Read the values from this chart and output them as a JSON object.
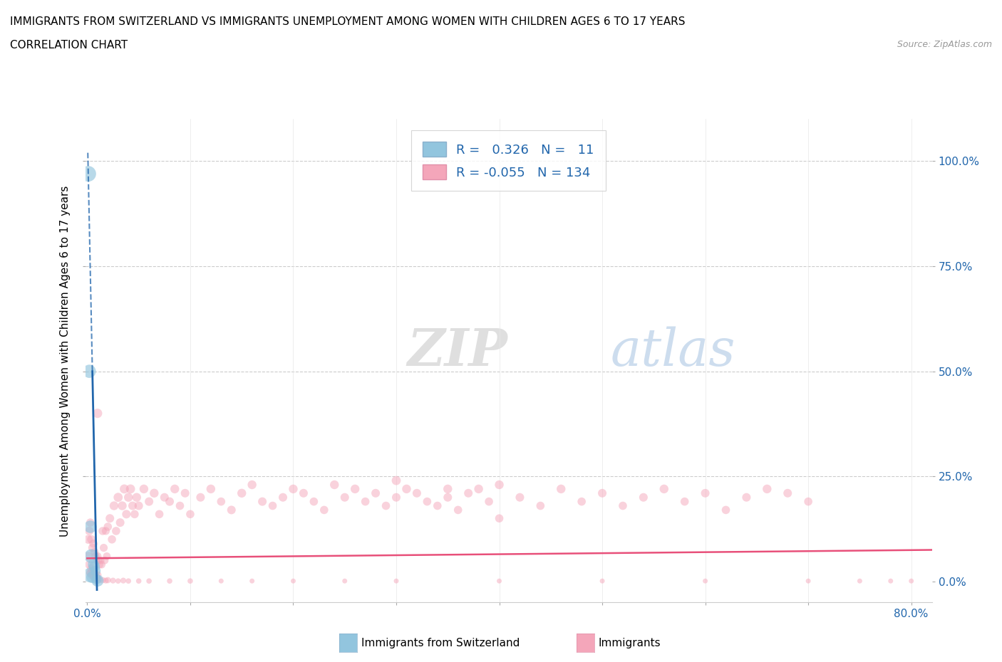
{
  "title_line1": "IMMIGRANTS FROM SWITZERLAND VS IMMIGRANTS UNEMPLOYMENT AMONG WOMEN WITH CHILDREN AGES 6 TO 17 YEARS",
  "title_line2": "CORRELATION CHART",
  "source": "Source: ZipAtlas.com",
  "ylabel": "Unemployment Among Women with Children Ages 6 to 17 years",
  "xlim": [
    -0.002,
    0.82
  ],
  "ylim": [
    -0.05,
    1.1
  ],
  "r_blue": "0.326",
  "n_blue": "11",
  "r_pink": "-0.055",
  "n_pink": "134",
  "blue_color": "#92c5de",
  "pink_color": "#f4a6ba",
  "blue_line_color": "#2166ac",
  "pink_line_color": "#e8507a",
  "legend_label_blue": "Immigrants from Switzerland",
  "legend_label_pink": "Immigrants",
  "blue_scatter_x": [
    0.001,
    0.002,
    0.003,
    0.004,
    0.006,
    0.007,
    0.008,
    0.003,
    0.005,
    0.009,
    0.01
  ],
  "blue_scatter_y": [
    0.97,
    0.5,
    0.13,
    0.06,
    0.04,
    0.035,
    0.025,
    0.015,
    0.01,
    0.005,
    0.002
  ],
  "blue_dot_sizes": [
    250,
    180,
    160,
    200,
    130,
    120,
    110,
    220,
    140,
    100,
    150
  ],
  "pink_scatter_x": [
    0.001,
    0.001,
    0.002,
    0.002,
    0.003,
    0.003,
    0.004,
    0.004,
    0.005,
    0.005,
    0.006,
    0.006,
    0.007,
    0.007,
    0.008,
    0.008,
    0.009,
    0.009,
    0.01,
    0.01,
    0.011,
    0.012,
    0.013,
    0.014,
    0.015,
    0.016,
    0.017,
    0.018,
    0.019,
    0.02,
    0.022,
    0.024,
    0.026,
    0.028,
    0.03,
    0.032,
    0.034,
    0.036,
    0.038,
    0.04,
    0.042,
    0.044,
    0.046,
    0.048,
    0.05,
    0.055,
    0.06,
    0.065,
    0.07,
    0.075,
    0.08,
    0.085,
    0.09,
    0.095,
    0.1,
    0.11,
    0.12,
    0.13,
    0.14,
    0.15,
    0.16,
    0.17,
    0.18,
    0.19,
    0.2,
    0.21,
    0.22,
    0.23,
    0.24,
    0.25,
    0.26,
    0.27,
    0.28,
    0.29,
    0.3,
    0.31,
    0.32,
    0.33,
    0.34,
    0.35,
    0.36,
    0.37,
    0.38,
    0.39,
    0.4,
    0.42,
    0.44,
    0.46,
    0.48,
    0.5,
    0.52,
    0.54,
    0.56,
    0.58,
    0.6,
    0.62,
    0.64,
    0.66,
    0.68,
    0.7,
    0.3,
    0.35,
    0.4,
    0.003,
    0.004,
    0.005,
    0.006,
    0.007,
    0.008,
    0.009,
    0.01,
    0.012,
    0.015,
    0.018,
    0.02,
    0.025,
    0.03,
    0.035,
    0.04,
    0.05,
    0.06,
    0.08,
    0.1,
    0.13,
    0.16,
    0.2,
    0.25,
    0.3,
    0.4,
    0.5,
    0.6,
    0.7,
    0.75,
    0.78,
    0.8,
    0.01
  ],
  "pink_scatter_y": [
    0.1,
    0.06,
    0.12,
    0.04,
    0.14,
    0.02,
    0.1,
    0.03,
    0.08,
    0.025,
    0.09,
    0.015,
    0.07,
    0.02,
    0.06,
    0.015,
    0.05,
    0.01,
    0.06,
    0.015,
    0.05,
    0.04,
    0.05,
    0.04,
    0.12,
    0.08,
    0.05,
    0.12,
    0.06,
    0.13,
    0.15,
    0.1,
    0.18,
    0.12,
    0.2,
    0.14,
    0.18,
    0.22,
    0.16,
    0.2,
    0.22,
    0.18,
    0.16,
    0.2,
    0.18,
    0.22,
    0.19,
    0.21,
    0.16,
    0.2,
    0.19,
    0.22,
    0.18,
    0.21,
    0.16,
    0.2,
    0.22,
    0.19,
    0.17,
    0.21,
    0.23,
    0.19,
    0.18,
    0.2,
    0.22,
    0.21,
    0.19,
    0.17,
    0.23,
    0.2,
    0.22,
    0.19,
    0.21,
    0.18,
    0.2,
    0.22,
    0.21,
    0.19,
    0.18,
    0.2,
    0.17,
    0.21,
    0.22,
    0.19,
    0.23,
    0.2,
    0.18,
    0.22,
    0.19,
    0.21,
    0.18,
    0.2,
    0.22,
    0.19,
    0.21,
    0.17,
    0.2,
    0.22,
    0.21,
    0.19,
    0.24,
    0.22,
    0.15,
    0.02,
    0.015,
    0.02,
    0.01,
    0.015,
    0.01,
    0.005,
    0.008,
    0.004,
    0.003,
    0.002,
    0.003,
    0.002,
    0.001,
    0.002,
    0.001,
    0.001,
    0.001,
    0.001,
    0.001,
    0.001,
    0.001,
    0.001,
    0.001,
    0.001,
    0.001,
    0.001,
    0.001,
    0.001,
    0.001,
    0.001,
    0.001,
    0.4
  ],
  "pink_dot_sizes": [
    80,
    80,
    75,
    75,
    70,
    70,
    75,
    75,
    70,
    70,
    70,
    70,
    65,
    65,
    65,
    65,
    60,
    60,
    65,
    65,
    60,
    60,
    60,
    60,
    70,
    65,
    60,
    65,
    60,
    70,
    75,
    70,
    80,
    70,
    85,
    75,
    80,
    85,
    75,
    80,
    85,
    75,
    70,
    80,
    75,
    80,
    75,
    80,
    70,
    75,
    75,
    80,
    70,
    75,
    70,
    75,
    80,
    70,
    75,
    80,
    80,
    75,
    70,
    75,
    80,
    75,
    70,
    70,
    80,
    75,
    80,
    70,
    75,
    70,
    75,
    80,
    75,
    70,
    70,
    75,
    70,
    75,
    80,
    70,
    80,
    75,
    70,
    80,
    70,
    75,
    70,
    75,
    80,
    70,
    75,
    70,
    75,
    80,
    75,
    70,
    85,
    80,
    70,
    55,
    55,
    50,
    50,
    50,
    50,
    45,
    50,
    45,
    40,
    35,
    40,
    35,
    30,
    35,
    30,
    30,
    30,
    30,
    30,
    25,
    25,
    25,
    25,
    25,
    25,
    25,
    25,
    25,
    25,
    25,
    25,
    90
  ]
}
